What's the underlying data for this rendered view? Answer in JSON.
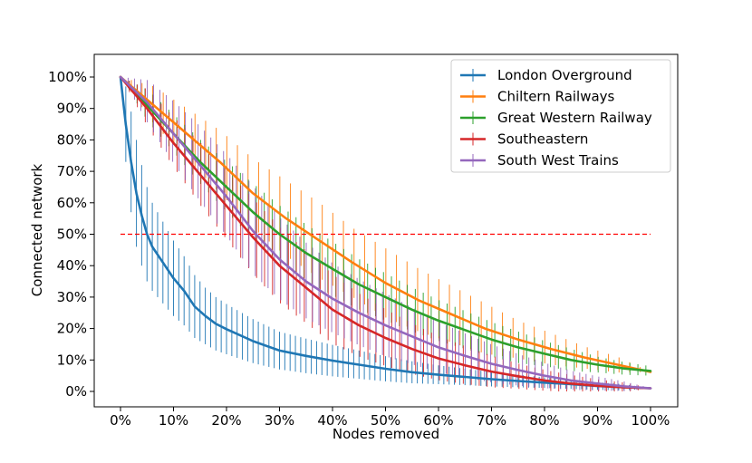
{
  "chart_data": {
    "type": "line",
    "xlabel": "Nodes removed",
    "ylabel": "Connected network",
    "xlim": [
      0,
      100
    ],
    "ylim": [
      0,
      100
    ],
    "x_ticks": [
      "0%",
      "10%",
      "20%",
      "30%",
      "40%",
      "50%",
      "60%",
      "70%",
      "80%",
      "90%",
      "100%"
    ],
    "y_ticks": [
      "0%",
      "10%",
      "20%",
      "30%",
      "40%",
      "50%",
      "60%",
      "70%",
      "80%",
      "90%",
      "100%"
    ],
    "legend_position": "top-right",
    "reference_line": {
      "y": 50,
      "color": "#ff0000",
      "style": "dashed"
    },
    "series": [
      {
        "name": "London Overground",
        "color": "#1f77b4",
        "x": [
          0,
          1,
          2,
          3,
          4,
          5,
          6,
          8,
          10,
          12,
          14,
          16,
          18,
          20,
          25,
          30,
          35,
          40,
          45,
          50,
          55,
          60,
          65,
          70,
          75,
          80,
          85,
          90,
          95,
          100
        ],
        "y": [
          100,
          85,
          73,
          63,
          56,
          50,
          46,
          41,
          36,
          32,
          27,
          24,
          21.5,
          19.8,
          16,
          13,
          11.3,
          9.8,
          8.5,
          7.2,
          6.1,
          5.3,
          4.6,
          3.9,
          3.3,
          2.8,
          2.3,
          1.7,
          1.3,
          1
        ],
        "err": [
          0,
          12,
          16,
          17,
          16,
          15,
          14,
          13,
          12,
          11,
          10,
          9,
          8.5,
          8,
          7,
          6,
          5.5,
          5,
          4.5,
          4,
          3.5,
          3,
          2.6,
          2.3,
          2,
          1.7,
          1.5,
          1.2,
          1,
          0
        ]
      },
      {
        "name": "Chiltern Railways",
        "color": "#ff7f0e",
        "x": [
          0,
          6.25,
          12.5,
          18.75,
          25,
          31.25,
          37.5,
          43.75,
          50,
          56.25,
          62.5,
          68.75,
          75,
          81.25,
          87.5,
          93.75,
          100
        ],
        "y": [
          100,
          91,
          82,
          73,
          63,
          55,
          48,
          41,
          34.5,
          29,
          24.5,
          20,
          16.5,
          13.5,
          10.8,
          8.5,
          6.2
        ],
        "err": [
          0,
          6,
          8,
          10,
          11,
          12,
          12,
          11,
          11,
          10,
          9,
          8,
          6,
          5,
          3.5,
          2.5,
          0
        ]
      },
      {
        "name": "Great Western Railway",
        "color": "#2ca02c",
        "x": [
          0,
          5,
          10,
          15,
          20,
          25,
          30,
          35,
          40,
          45,
          50,
          55,
          60,
          65,
          70,
          75,
          80,
          85,
          90,
          95,
          100
        ],
        "y": [
          100,
          91,
          82,
          73,
          65,
          57,
          50,
          44,
          39,
          34,
          30,
          26,
          22.5,
          19.5,
          16.5,
          14,
          12,
          10,
          8.5,
          7.3,
          6.5
        ],
        "err": [
          0,
          5,
          6,
          7,
          8,
          9,
          9,
          9,
          8.5,
          8,
          7.5,
          7,
          6.5,
          6,
          5.5,
          5,
          4,
          3.5,
          2.5,
          2,
          1.5
        ]
      },
      {
        "name": "Southeastern",
        "color": "#d62728",
        "x": [
          0,
          5,
          10,
          15,
          20,
          25,
          30,
          35,
          40,
          45,
          50,
          55,
          60,
          65,
          70,
          75,
          80,
          85,
          90,
          95,
          100
        ],
        "y": [
          100,
          90,
          79,
          69,
          59,
          49,
          40,
          33,
          26,
          21,
          17,
          13.5,
          10.5,
          8.3,
          6.3,
          4.8,
          3.5,
          2.5,
          1.8,
          1.3,
          1
        ],
        "err": [
          0,
          6,
          8,
          10,
          11,
          12,
          12,
          11.5,
          11,
          10,
          9,
          8,
          7,
          6,
          5,
          4,
          3.3,
          2.7,
          2,
          1.5,
          0
        ]
      },
      {
        "name": "South West Trains",
        "color": "#9467bd",
        "x": [
          0,
          5,
          10,
          15,
          20,
          25,
          30,
          35,
          40,
          45,
          50,
          55,
          60,
          65,
          70,
          75,
          80,
          85,
          90,
          95,
          100
        ],
        "y": [
          100,
          92,
          82,
          72,
          62,
          51,
          42,
          35,
          29.5,
          25,
          21,
          17.5,
          14,
          11.3,
          8.8,
          6.8,
          5,
          3.5,
          2.5,
          1.6,
          1
        ],
        "err": [
          0,
          7,
          10,
          12,
          13,
          14,
          13,
          12,
          11,
          10.5,
          10,
          9,
          8,
          7,
          6,
          5,
          4,
          3,
          2.2,
          1.5,
          0
        ]
      }
    ]
  }
}
